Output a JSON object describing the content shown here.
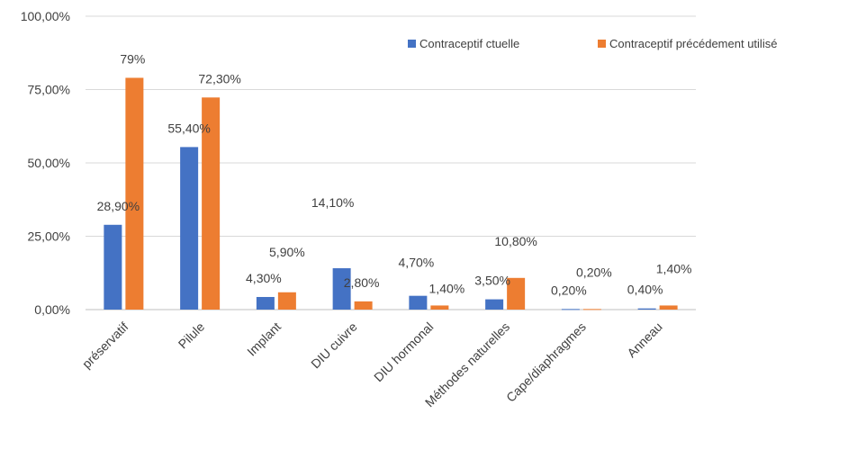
{
  "chart_data": {
    "type": "bar",
    "title": "",
    "xlabel": "",
    "ylabel": "",
    "ylim": [
      0,
      100
    ],
    "yticks": [
      "0,00%",
      "25,00%",
      "50,00%",
      "75,00%",
      "100,00%"
    ],
    "categories": [
      "préservatif",
      "Pilule",
      "Implant",
      "DIU cuivre",
      "DIU hormonal",
      "Méthodes naturelles",
      "Cape/diaphragmes",
      "Anneau"
    ],
    "series": [
      {
        "name": "Contraceptif ctuelle",
        "color": "#4472c4",
        "values": [
          28.9,
          55.4,
          4.3,
          14.1,
          4.7,
          3.5,
          0.2,
          0.4
        ],
        "labels": [
          "28,90%",
          "55,40%",
          "4,30%",
          "14,10%",
          "4,70%",
          "3,50%",
          "0,20%",
          "0,40%"
        ]
      },
      {
        "name": "Contraceptif précédement utilisé",
        "color": "#ed7d31",
        "values": [
          79,
          72.3,
          5.9,
          2.8,
          1.4,
          10.8,
          0.2,
          1.4
        ],
        "labels": [
          "79%",
          "72,30%",
          "5,90%",
          "2,80%",
          "1,40%",
          "10,80%",
          "0,20%",
          "1,40%"
        ]
      }
    ],
    "grid": true,
    "legend_position": "top-right"
  }
}
